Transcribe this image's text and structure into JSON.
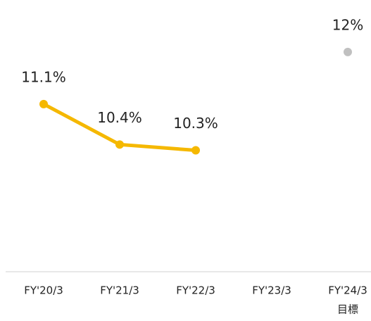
{
  "chart_data": {
    "type": "line",
    "categories": [
      "FY'20/3",
      "FY'21/3",
      "FY'22/3",
      "FY'23/3",
      "FY'24/3"
    ],
    "sublabels": [
      null,
      null,
      null,
      null,
      "目標"
    ],
    "series": [
      {
        "color": "#f5b800",
        "values": [
          11.1,
          10.4,
          10.3,
          null,
          null
        ],
        "value_labels": [
          "11.1%",
          "10.4%",
          "10.3%",
          null,
          null
        ]
      },
      {
        "color": "#c0c0c0",
        "values": [
          null,
          null,
          null,
          null,
          12
        ],
        "value_labels": [
          null,
          null,
          null,
          null,
          "12%"
        ]
      }
    ],
    "ylim": [
      8.2,
      12.9
    ]
  }
}
